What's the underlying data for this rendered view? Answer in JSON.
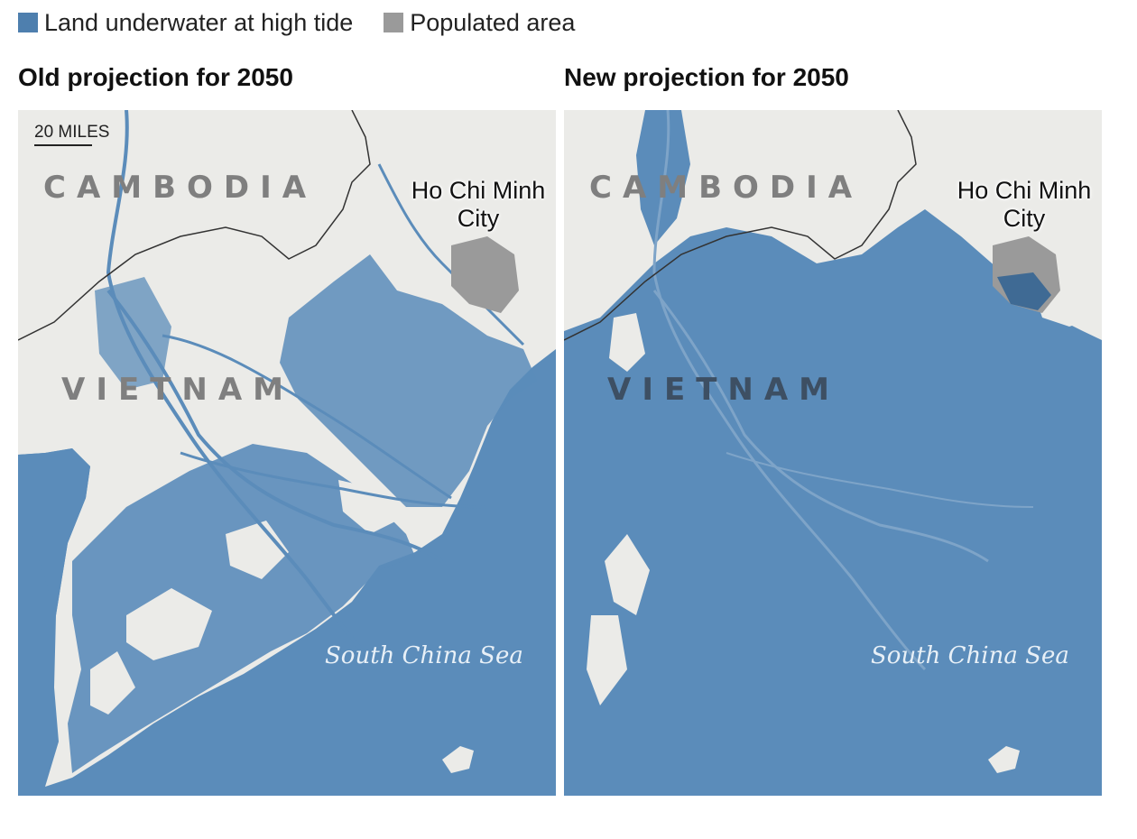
{
  "legend": {
    "items": [
      {
        "label": "Land underwater at high tide",
        "color": "#4e7fae"
      },
      {
        "label": "Populated area",
        "color": "#9a9a9a"
      }
    ]
  },
  "maps": [
    {
      "title": "Old projection for 2050",
      "scale_label": "20 MILES",
      "labels": {
        "cambodia": "CAMBODIA",
        "vietnam": "VIETNAM",
        "city": "Ho Chi Minh City",
        "sea": "South China Sea"
      }
    },
    {
      "title": "New projection for 2050",
      "labels": {
        "cambodia": "CAMBODIA",
        "vietnam": "VIETNAM",
        "city": "Ho Chi Minh City",
        "sea": "South China Sea"
      }
    }
  ],
  "colors": {
    "sea": "#5b8cba",
    "flooded": "#5b8cba",
    "land": "#ebebe8",
    "populated": "#9a9a9a",
    "border": "#333333",
    "river": "#5b8cba"
  }
}
